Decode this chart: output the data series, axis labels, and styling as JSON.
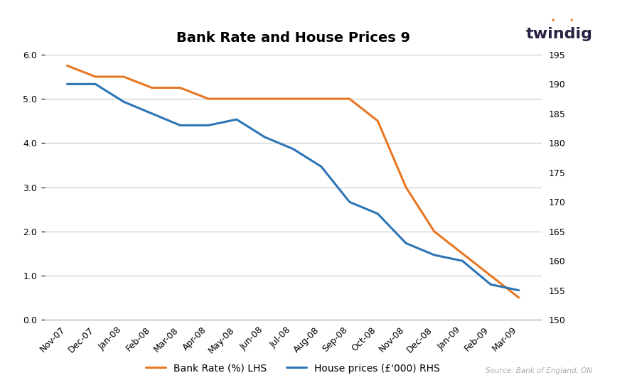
{
  "title": "Bank Rate and House Prices 9",
  "categories": [
    "Nov-07",
    "Dec-07",
    "Jan-08",
    "Feb-08",
    "Mar-08",
    "Apr-08",
    "May-08",
    "Jun-08",
    "Jul-08",
    "Aug-08",
    "Sep-08",
    "Oct-08",
    "Nov-08",
    "Dec-08",
    "Jan-09",
    "Feb-09",
    "Mar-09"
  ],
  "bank_rate": [
    5.75,
    5.5,
    5.5,
    5.25,
    5.25,
    5.0,
    5.0,
    5.0,
    5.0,
    5.0,
    5.0,
    4.5,
    3.0,
    2.0,
    1.5,
    1.0,
    0.5
  ],
  "house_prices": [
    190,
    190,
    187,
    185,
    183,
    183,
    184,
    181,
    179,
    176,
    170,
    168,
    163,
    161,
    160,
    156,
    155
  ],
  "bank_rate_color": "#E87722",
  "house_price_color": "#2E75B6",
  "lhs_ylim": [
    0.0,
    6.0
  ],
  "rhs_ylim": [
    150,
    195
  ],
  "lhs_yticks": [
    0.0,
    1.0,
    2.0,
    3.0,
    4.0,
    5.0,
    6.0
  ],
  "rhs_yticks": [
    150,
    155,
    160,
    165,
    170,
    175,
    180,
    185,
    190,
    195
  ],
  "legend_label_bank": "Bank Rate (%) LHS",
  "legend_label_house": "House prices (£'000) RHS",
  "source_text": "Source: Bank of England, ON",
  "twindig_text": "twindig",
  "background_color": "#ffffff",
  "grid_color": "#c8c8c8",
  "line_width": 2.2,
  "tick_fontsize": 9,
  "legend_fontsize": 10,
  "title_fontsize": 14,
  "twindig_color": "#2B2142",
  "twindig_dot_color": "#E87722"
}
